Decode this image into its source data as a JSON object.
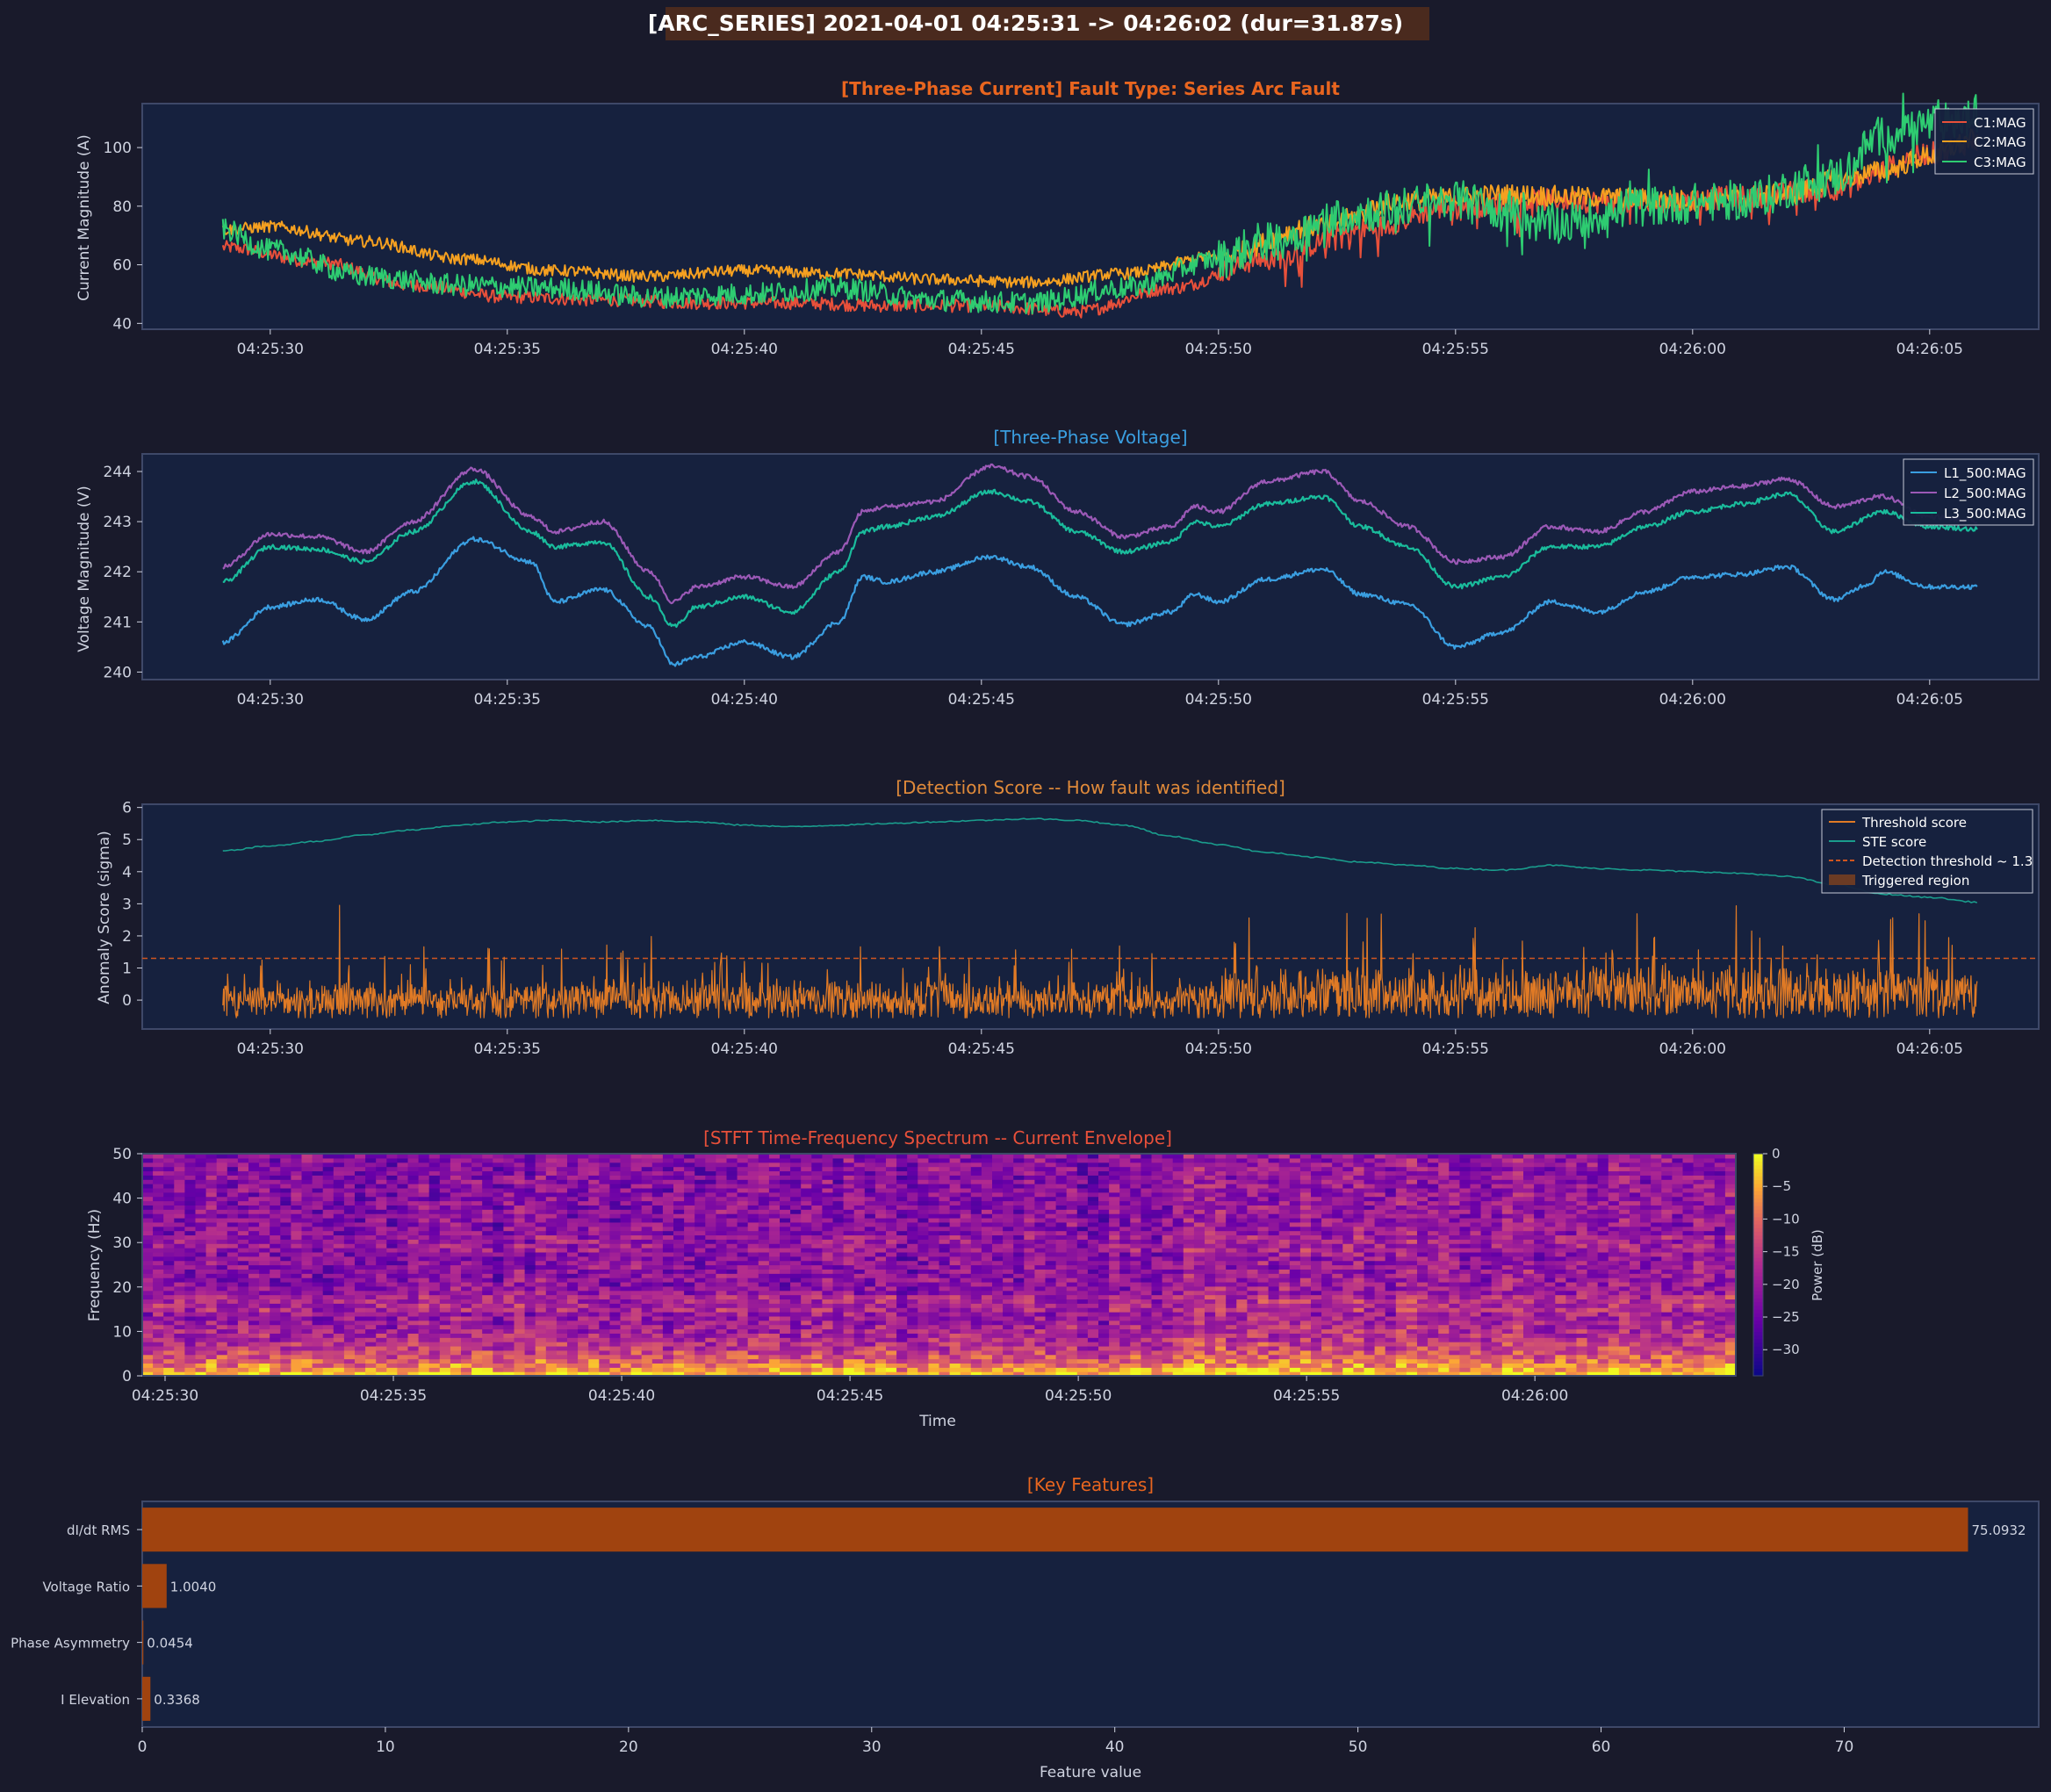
{
  "suptitle": "[ARC_SERIES]  2021-04-01 04:25:31 -> 04:26:02  (dur=31.87s)",
  "colors": {
    "background": "#191a2b",
    "panel": "#16213e",
    "panel_border": "#3e4868",
    "text": "#cfd3e0",
    "suptitle_bg": "#4a2a1e",
    "title_orange": "#e8651f",
    "title_blue": "#3a9ee0",
    "title_score": "#e08a3a",
    "title_stft": "#e8503a",
    "feature_bar": "#a0430f"
  },
  "time_ticks": [
    "04:25:30",
    "04:25:35",
    "04:25:40",
    "04:25:45",
    "04:25:50",
    "04:25:55",
    "04:26:00",
    "04:26:05"
  ],
  "stft_time_ticks": [
    "04:25:30",
    "04:25:35",
    "04:25:40",
    "04:25:45",
    "04:25:50",
    "04:25:55",
    "04:26:00"
  ],
  "chart_data": [
    {
      "type": "line",
      "title": "[Three-Phase Current]  Fault Type: Series Arc Fault",
      "ylabel": "Current Magnitude (A)",
      "ylim": [
        38,
        115
      ],
      "yticks": [
        40,
        60,
        80,
        100
      ],
      "xlim": [
        27.3,
        67.3
      ],
      "legend": "top-right",
      "series": [
        {
          "name": "C1:MAG",
          "color": "#e8503a",
          "knots": [
            [
              29,
              66
            ],
            [
              31,
              61
            ],
            [
              33,
              53
            ],
            [
              35,
              49
            ],
            [
              37,
              48
            ],
            [
              39,
              47
            ],
            [
              41,
              47
            ],
            [
              43,
              46
            ],
            [
              45,
              46
            ],
            [
              47,
              44
            ],
            [
              49,
              52
            ],
            [
              51,
              62
            ],
            [
              53,
              72
            ],
            [
              55,
              80
            ],
            [
              57,
              82
            ],
            [
              59,
              81
            ],
            [
              61,
              83
            ],
            [
              63,
              86
            ],
            [
              65,
              98
            ],
            [
              66,
              102
            ]
          ]
        },
        {
          "name": "C2:MAG",
          "color": "#f5a020",
          "knots": [
            [
              29,
              72
            ],
            [
              30,
              73
            ],
            [
              32,
              68
            ],
            [
              34,
              62
            ],
            [
              36,
              58
            ],
            [
              38,
              56
            ],
            [
              40,
              58
            ],
            [
              42,
              57
            ],
            [
              44,
              55
            ],
            [
              46,
              54
            ],
            [
              48,
              57
            ],
            [
              50,
              63
            ],
            [
              52,
              73
            ],
            [
              54,
              82
            ],
            [
              56,
              84
            ],
            [
              58,
              83
            ],
            [
              60,
              82
            ],
            [
              62,
              84
            ],
            [
              63,
              89
            ],
            [
              64,
              92
            ],
            [
              65,
              97
            ],
            [
              66,
              103
            ]
          ]
        },
        {
          "name": "C3:MAG",
          "color": "#2ecc71",
          "knots": [
            [
              29,
              72
            ],
            [
              30,
              65
            ],
            [
              32,
              56
            ],
            [
              34,
              53
            ],
            [
              36,
              52
            ],
            [
              38,
              49
            ],
            [
              40,
              50
            ],
            [
              42,
              52
            ],
            [
              44,
              48
            ],
            [
              46,
              47
            ],
            [
              48,
              52
            ],
            [
              50,
              62
            ],
            [
              51,
              68
            ],
            [
              53,
              78
            ],
            [
              55,
              82
            ],
            [
              57,
              74
            ],
            [
              59,
              80
            ],
            [
              61,
              82
            ],
            [
              63,
              90
            ],
            [
              64,
              104
            ],
            [
              65,
              108
            ],
            [
              66,
              110
            ]
          ]
        }
      ]
    },
    {
      "type": "line",
      "title": "[Three-Phase Voltage]",
      "ylabel": "Voltage Magnitude (V)",
      "ylim": [
        239.85,
        244.35
      ],
      "yticks": [
        240,
        241,
        242,
        243,
        244
      ],
      "xlim": [
        27.3,
        67.3
      ],
      "legend": "top-right",
      "series": [
        {
          "name": "L1_500:MAG",
          "color": "#3a9ee0",
          "knots": [
            [
              29,
              240.6
            ],
            [
              30,
              241.3
            ],
            [
              31,
              241.45
            ],
            [
              32,
              241.05
            ],
            [
              33,
              241.6
            ],
            [
              34.3,
              242.65
            ],
            [
              35.5,
              242.2
            ],
            [
              36,
              241.4
            ],
            [
              37,
              241.65
            ],
            [
              38,
              240.9
            ],
            [
              38.5,
              240.15
            ],
            [
              39,
              240.3
            ],
            [
              40,
              240.6
            ],
            [
              41,
              240.3
            ],
            [
              42,
              241.0
            ],
            [
              42.5,
              241.9
            ],
            [
              43,
              241.8
            ],
            [
              44,
              242.0
            ],
            [
              45.2,
              242.3
            ],
            [
              46,
              242.1
            ],
            [
              47,
              241.5
            ],
            [
              48,
              240.95
            ],
            [
              49,
              241.2
            ],
            [
              49.5,
              241.55
            ],
            [
              50,
              241.4
            ],
            [
              51,
              241.85
            ],
            [
              52.2,
              242.05
            ],
            [
              53,
              241.55
            ],
            [
              54,
              241.35
            ],
            [
              55,
              240.5
            ],
            [
              56,
              240.8
            ],
            [
              57,
              241.4
            ],
            [
              58,
              241.2
            ],
            [
              59,
              241.6
            ],
            [
              60,
              241.9
            ],
            [
              61,
              241.95
            ],
            [
              62,
              242.1
            ],
            [
              63,
              241.45
            ],
            [
              63.7,
              241.75
            ],
            [
              64,
              242.0
            ],
            [
              65,
              241.7
            ],
            [
              66,
              241.7
            ]
          ]
        },
        {
          "name": "L2_500:MAG",
          "color": "#9b59b6",
          "knots": [
            [
              29,
              242.1
            ],
            [
              30,
              242.75
            ],
            [
              31,
              242.7
            ],
            [
              32,
              242.4
            ],
            [
              33,
              243.0
            ],
            [
              34.3,
              244.05
            ],
            [
              35.5,
              243.1
            ],
            [
              36,
              242.8
            ],
            [
              37,
              243.0
            ],
            [
              38,
              242.0
            ],
            [
              38.5,
              241.4
            ],
            [
              39,
              241.7
            ],
            [
              40,
              241.9
            ],
            [
              41,
              241.7
            ],
            [
              42,
              242.4
            ],
            [
              42.5,
              243.2
            ],
            [
              43,
              243.3
            ],
            [
              44,
              243.4
            ],
            [
              45.2,
              244.1
            ],
            [
              46,
              243.9
            ],
            [
              47,
              243.2
            ],
            [
              48,
              242.7
            ],
            [
              49,
              242.9
            ],
            [
              49.5,
              243.3
            ],
            [
              50,
              243.2
            ],
            [
              51,
              243.8
            ],
            [
              52.2,
              244.0
            ],
            [
              53,
              243.4
            ],
            [
              54,
              242.9
            ],
            [
              55,
              242.2
            ],
            [
              56,
              242.3
            ],
            [
              57,
              242.9
            ],
            [
              58,
              242.8
            ],
            [
              59,
              243.2
            ],
            [
              60,
              243.6
            ],
            [
              61,
              243.7
            ],
            [
              62,
              243.85
            ],
            [
              63,
              243.3
            ],
            [
              64,
              243.5
            ],
            [
              65,
              243.1
            ],
            [
              66,
              243.0
            ]
          ]
        },
        {
          "name": "L3_500:MAG",
          "color": "#1abc9c",
          "knots": [
            [
              29,
              241.8
            ],
            [
              30,
              242.5
            ],
            [
              31,
              242.45
            ],
            [
              32,
              242.2
            ],
            [
              33,
              242.8
            ],
            [
              34.3,
              243.8
            ],
            [
              35.5,
              242.8
            ],
            [
              36,
              242.5
            ],
            [
              37,
              242.6
            ],
            [
              38,
              241.5
            ],
            [
              38.5,
              240.9
            ],
            [
              39,
              241.3
            ],
            [
              40,
              241.5
            ],
            [
              41,
              241.2
            ],
            [
              42,
              242.0
            ],
            [
              42.5,
              242.8
            ],
            [
              43,
              242.9
            ],
            [
              44,
              243.1
            ],
            [
              45.2,
              243.6
            ],
            [
              46,
              243.4
            ],
            [
              47,
              242.8
            ],
            [
              48,
              242.4
            ],
            [
              49,
              242.6
            ],
            [
              49.5,
              243.0
            ],
            [
              50,
              242.9
            ],
            [
              51,
              243.35
            ],
            [
              52.2,
              243.5
            ],
            [
              53,
              242.9
            ],
            [
              54,
              242.5
            ],
            [
              55,
              241.7
            ],
            [
              56,
              241.9
            ],
            [
              57,
              242.5
            ],
            [
              58,
              242.5
            ],
            [
              59,
              242.9
            ],
            [
              60,
              243.2
            ],
            [
              61,
              243.35
            ],
            [
              62,
              243.55
            ],
            [
              63,
              242.8
            ],
            [
              64,
              243.2
            ],
            [
              65,
              242.9
            ],
            [
              66,
              242.85
            ]
          ]
        }
      ]
    },
    {
      "type": "line",
      "title": "[Detection Score -- How fault was identified]",
      "ylabel": "Anomaly Score (sigma)",
      "ylim": [
        -0.9,
        6.1
      ],
      "yticks": [
        0,
        1,
        2,
        3,
        4,
        5,
        6
      ],
      "xlim": [
        27.3,
        67.3
      ],
      "legend": "top-right",
      "threshold": 1.3,
      "series": [
        {
          "name": "Threshold score",
          "color": "#e07a25",
          "noise": true
        },
        {
          "name": "STE score",
          "color": "#1a9c8c",
          "knots": [
            [
              29,
              4.65
            ],
            [
              30,
              4.8
            ],
            [
              31,
              4.95
            ],
            [
              32,
              5.15
            ],
            [
              33,
              5.3
            ],
            [
              34,
              5.45
            ],
            [
              35,
              5.55
            ],
            [
              36,
              5.6
            ],
            [
              37,
              5.55
            ],
            [
              38,
              5.6
            ],
            [
              39,
              5.55
            ],
            [
              40,
              5.45
            ],
            [
              41,
              5.4
            ],
            [
              42,
              5.45
            ],
            [
              43,
              5.5
            ],
            [
              44,
              5.55
            ],
            [
              45,
              5.6
            ],
            [
              46,
              5.65
            ],
            [
              47,
              5.6
            ],
            [
              48,
              5.45
            ],
            [
              49,
              5.1
            ],
            [
              50,
              4.85
            ],
            [
              51,
              4.6
            ],
            [
              52,
              4.45
            ],
            [
              53,
              4.3
            ],
            [
              54,
              4.2
            ],
            [
              55,
              4.1
            ],
            [
              56,
              4.05
            ],
            [
              57,
              4.2
            ],
            [
              58,
              4.1
            ],
            [
              59,
              4.05
            ],
            [
              60,
              4.0
            ],
            [
              61,
              3.95
            ],
            [
              62,
              3.85
            ],
            [
              63,
              3.6
            ],
            [
              64,
              3.3
            ],
            [
              65,
              3.2
            ],
            [
              66,
              3.05
            ]
          ]
        },
        {
          "name": "Detection threshold ~ 1.3",
          "color": "#d0551f",
          "style": "dashed"
        },
        {
          "name": "Triggered region",
          "color": "#6b3b24",
          "style": "patch"
        }
      ]
    },
    {
      "type": "heatmap",
      "title": "[STFT Time-Frequency Spectrum -- Current Envelope]",
      "xlabel": "Time",
      "ylabel": "Frequency (Hz)",
      "ylim": [
        0,
        50
      ],
      "yticks": [
        0,
        10,
        20,
        30,
        40,
        50
      ],
      "xlim": [
        29.5,
        64.4
      ],
      "colorbar": {
        "label": "Power (dB)",
        "range": [
          -34,
          0
        ],
        "ticks": [
          0,
          -5,
          -10,
          -15,
          -20,
          -25,
          -30
        ]
      }
    },
    {
      "type": "bar",
      "orientation": "horizontal",
      "title": "[Key Features]",
      "xlabel": "Feature value",
      "xlim": [
        0,
        78
      ],
      "xticks": [
        0,
        10,
        20,
        30,
        40,
        50,
        60,
        70
      ],
      "categories": [
        "dI/dt RMS",
        "Voltage Ratio",
        "Phase Asymmetry",
        "I Elevation"
      ],
      "values": [
        75.0932,
        1.004,
        0.0454,
        0.3368
      ],
      "value_labels": [
        "75.0932",
        "1.0040",
        "0.0454",
        "0.3368"
      ]
    }
  ]
}
